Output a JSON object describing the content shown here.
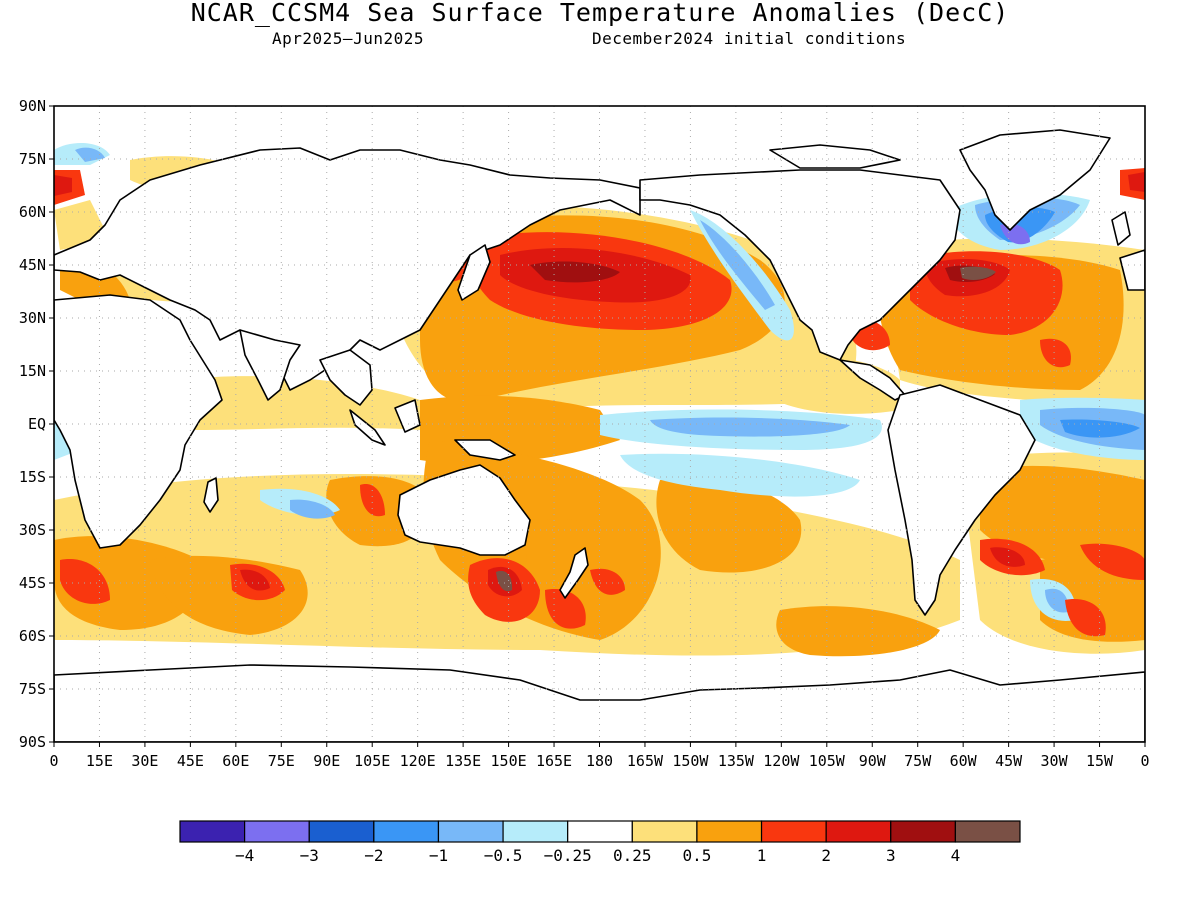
{
  "title": "NCAR_CCSM4 Sea Surface Temperature Anomalies (DecC)",
  "subtitle_left": "Apr2025–Jun2025",
  "subtitle_right": "December2024 initial conditions",
  "lat_labels": [
    "90N",
    "75N",
    "60N",
    "45N",
    "30N",
    "15N",
    "EQ",
    "15S",
    "30S",
    "45S",
    "60S",
    "75S",
    "90S"
  ],
  "lon_labels": [
    "0",
    "15E",
    "30E",
    "45E",
    "60E",
    "75E",
    "90E",
    "105E",
    "120E",
    "135E",
    "150E",
    "165E",
    "180",
    "165W",
    "150W",
    "135W",
    "120W",
    "105W",
    "90W",
    "75W",
    "60W",
    "45W",
    "30W",
    "15W",
    "0"
  ],
  "colorbar": {
    "colors": [
      "#3b22b0",
      "#7c6ff0",
      "#1a5fd0",
      "#3a96f5",
      "#78b8f8",
      "#b6ecfa",
      "#ffffff",
      "#fde07a",
      "#f9a10e",
      "#f9370f",
      "#de1810",
      "#a00f10",
      "#7a5045"
    ],
    "labels": [
      "−4",
      "−3",
      "−2",
      "−1",
      "−0.5",
      "−0.25",
      "0.25",
      "0.5",
      "1",
      "2",
      "3",
      "4"
    ]
  }
}
